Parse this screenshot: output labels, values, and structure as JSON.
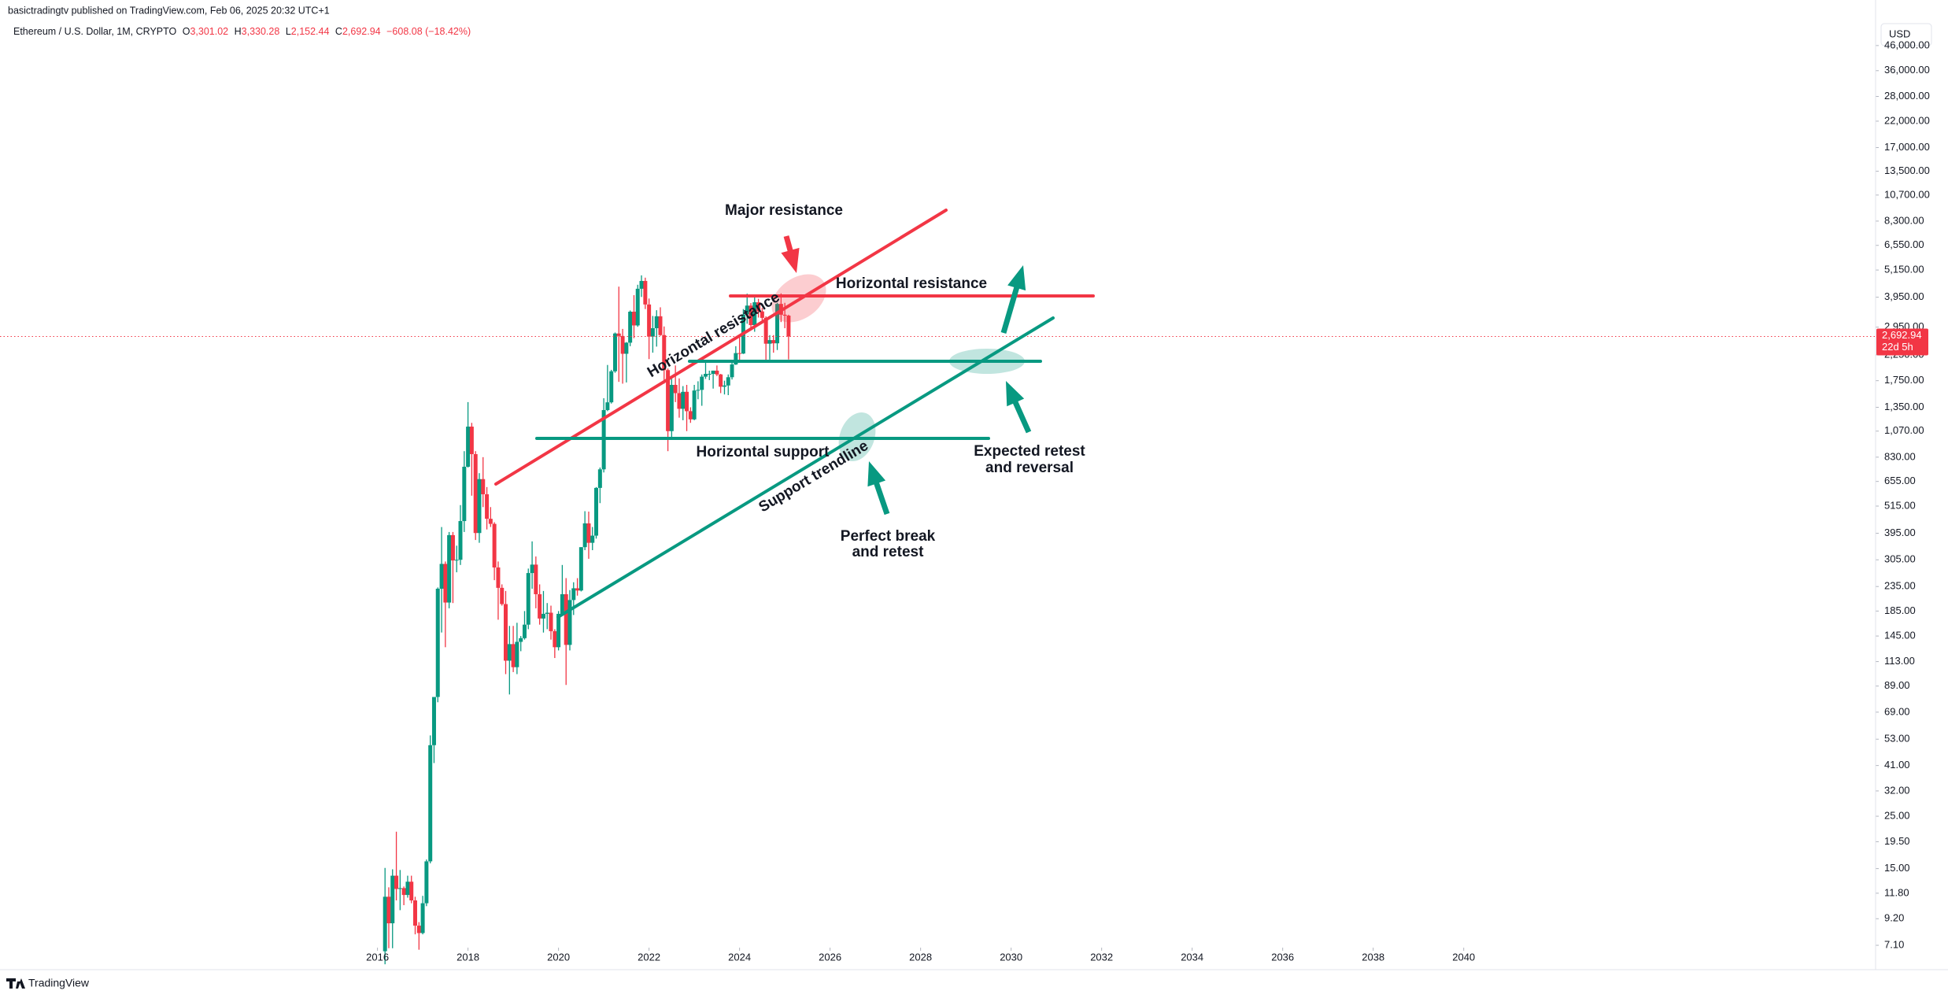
{
  "chart_data": {
    "type": "candlestick",
    "published": "basictradingtv published on TradingView.com, Feb 06, 2025 20:32 UTC+1",
    "title": "Ethereum / U.S. Dollar, 1M, CRYPTO",
    "ohlc_labels": [
      "O",
      "H",
      "L",
      "C"
    ],
    "ohlc_values": [
      "3,301.02",
      "3,330.28",
      "2,152.44",
      "2,692.94"
    ],
    "change": "−608.08 (−18.42%)",
    "currency": "USD",
    "price_label": "2,692.94",
    "countdown": "22d 5h",
    "brand": "TradingView",
    "annotations": [
      "Major resistance",
      "Horizontal resistance",
      "Horizontal resistance",
      "Horizontal support",
      "Support trendline",
      "Perfect break",
      "and retest",
      "Expected retest",
      "and reversal"
    ],
    "log_scale": true,
    "up_color": "#089981",
    "down_color": "#f23645",
    "xlim": [
      2007.66,
      2049.1
    ],
    "xticks": [
      2016,
      2018,
      2020,
      2022,
      2024,
      2026,
      2028,
      2030,
      2032,
      2034,
      2036,
      2038,
      2040
    ],
    "ylim": [
      6.94,
      59200
    ],
    "yticks": [
      {
        "value": 7.1,
        "label": "7.10"
      },
      {
        "value": 9.2,
        "label": "9.20"
      },
      {
        "value": 11.8,
        "label": "11.80"
      },
      {
        "value": 15,
        "label": "15.00"
      },
      {
        "value": 19.5,
        "label": "19.50"
      },
      {
        "value": 25,
        "label": "25.00"
      },
      {
        "value": 32,
        "label": "32.00"
      },
      {
        "value": 41,
        "label": "41.00"
      },
      {
        "value": 53,
        "label": "53.00"
      },
      {
        "value": 69,
        "label": "69.00"
      },
      {
        "value": 89,
        "label": "89.00"
      },
      {
        "value": 113,
        "label": "113.00"
      },
      {
        "value": 145,
        "label": "145.00"
      },
      {
        "value": 185,
        "label": "185.00"
      },
      {
        "value": 235,
        "label": "235.00"
      },
      {
        "value": 305,
        "label": "305.00"
      },
      {
        "value": 395,
        "label": "395.00"
      },
      {
        "value": 515,
        "label": "515.00"
      },
      {
        "value": 655,
        "label": "655.00"
      },
      {
        "value": 830,
        "label": "830.00"
      },
      {
        "value": 1070,
        "label": "1,070.00"
      },
      {
        "value": 1350,
        "label": "1,350.00"
      },
      {
        "value": 1750,
        "label": "1,750.00"
      },
      {
        "value": 2250,
        "label": "2,250.00"
      },
      {
        "value": 2950,
        "label": "2,950.00"
      },
      {
        "value": 3950,
        "label": "3,950.00"
      },
      {
        "value": 5150,
        "label": "5,150.00"
      },
      {
        "value": 6550,
        "label": "6,550.00"
      },
      {
        "value": 8300,
        "label": "8,300.00"
      },
      {
        "value": 10700,
        "label": "10,700.00"
      },
      {
        "value": 13500,
        "label": "13,500.00"
      },
      {
        "value": 17000,
        "label": "17,000.00"
      },
      {
        "value": 22000,
        "label": "22,000.00"
      },
      {
        "value": 28000,
        "label": "28,000.00"
      },
      {
        "value": 36000,
        "label": "36,000.00"
      },
      {
        "value": 46000,
        "label": "46,000.00"
      }
    ],
    "x": [
      2016.167,
      2016.25,
      2016.333,
      2016.417,
      2016.5,
      2016.583,
      2016.667,
      2016.75,
      2016.833,
      2016.917,
      2017.0,
      2017.083,
      2017.167,
      2017.25,
      2017.333,
      2017.417,
      2017.5,
      2017.583,
      2017.667,
      2017.75,
      2017.833,
      2017.917,
      2018.0,
      2018.083,
      2018.167,
      2018.25,
      2018.333,
      2018.417,
      2018.5,
      2018.583,
      2018.667,
      2018.75,
      2018.833,
      2018.917,
      2019.0,
      2019.083,
      2019.167,
      2019.25,
      2019.333,
      2019.417,
      2019.5,
      2019.583,
      2019.667,
      2019.75,
      2019.833,
      2019.917,
      2020.0,
      2020.083,
      2020.167,
      2020.25,
      2020.333,
      2020.417,
      2020.5,
      2020.583,
      2020.667,
      2020.75,
      2020.833,
      2020.917,
      2021.0,
      2021.083,
      2021.167,
      2021.25,
      2021.333,
      2021.417,
      2021.5,
      2021.583,
      2021.667,
      2021.75,
      2021.833,
      2021.917,
      2022.0,
      2022.083,
      2022.167,
      2022.25,
      2022.333,
      2022.417,
      2022.5,
      2022.583,
      2022.667,
      2022.75,
      2022.833,
      2022.917,
      2023.0,
      2023.083,
      2023.167,
      2023.25,
      2023.333,
      2023.417,
      2023.5,
      2023.583,
      2023.667,
      2023.75,
      2023.833,
      2023.917,
      2024.0,
      2024.083,
      2024.167,
      2024.25,
      2024.333,
      2024.417,
      2024.5,
      2024.583,
      2024.667,
      2024.75,
      2024.833,
      2024.917,
      2025.0,
      2025.083
    ],
    "open": [
      6.7,
      11.4,
      8.8,
      14.0,
      12.3,
      12.4,
      11.6,
      13.2,
      11.0,
      8.6,
      8.0,
      10.7,
      16.1,
      50,
      80,
      230,
      293,
      201,
      388,
      303,
      305,
      445,
      756,
      1118,
      855,
      396,
      670,
      578,
      455,
      433,
      283,
      232,
      198,
      114,
      134,
      107,
      137,
      142,
      162,
      268,
      291,
      218,
      172,
      180,
      182,
      152,
      130,
      180,
      218,
      133,
      206,
      231,
      226,
      345,
      435,
      360,
      386,
      615,
      737,
      1314,
      1417,
      1918,
      2773,
      2707,
      2275,
      2535,
      3430,
      3000,
      4290,
      4630,
      3680,
      2690,
      2920,
      3280,
      2730,
      1940,
      1070,
      1680,
      1550,
      1330,
      1570,
      1300,
      1200,
      1590,
      1600,
      1820,
      1870,
      1870,
      1930,
      1860,
      1650,
      1670,
      1810,
      2050,
      2290,
      2280,
      3340,
      3640,
      3010,
      3760,
      3440,
      3230,
      2510,
      2600,
      2520,
      3700,
      3330,
      3301.02
    ],
    "high": [
      15.1,
      12.5,
      14.9,
      21.5,
      14.8,
      12.6,
      14.0,
      14.0,
      11.4,
      8.9,
      11.5,
      16.4,
      55,
      80,
      233,
      420,
      300,
      400,
      400,
      350,
      520,
      880,
      1420,
      1160,
      880,
      710,
      830,
      620,
      510,
      440,
      300,
      240,
      225,
      160,
      160,
      165,
      145,
      185,
      280,
      365,
      315,
      240,
      225,
      200,
      195,
      155,
      185,
      290,
      255,
      227,
      245,
      255,
      345,
      490,
      488,
      420,
      620,
      750,
      1475,
      2040,
      1945,
      2800,
      4380,
      2900,
      2550,
      3470,
      4030,
      4460,
      4890,
      4780,
      3900,
      3290,
      3480,
      3580,
      2970,
      1970,
      1780,
      2030,
      1790,
      1660,
      1680,
      1350,
      1680,
      1740,
      1860,
      2140,
      1930,
      1930,
      2030,
      1870,
      1750,
      1860,
      2130,
      2450,
      2720,
      3520,
      4090,
      3730,
      3980,
      3890,
      3560,
      3280,
      2730,
      2730,
      3740,
      4100,
      3740,
      3330.28
    ],
    "low": [
      5.9,
      6.9,
      6.9,
      11.0,
      10.0,
      10.5,
      11.3,
      10.7,
      7.9,
      6.8,
      7.9,
      10.4,
      15.8,
      42,
      76,
      150,
      130,
      190,
      200,
      270,
      290,
      400,
      750,
      570,
      370,
      360,
      510,
      410,
      420,
      250,
      170,
      195,
      100,
      82,
      102,
      100,
      125,
      140,
      155,
      230,
      190,
      162,
      150,
      155,
      140,
      117,
      126,
      179,
      90,
      126,
      178,
      215,
      224,
      335,
      308,
      335,
      375,
      530,
      715,
      1300,
      1400,
      1890,
      1730,
      1700,
      1720,
      2450,
      2650,
      2960,
      3960,
      3520,
      2160,
      2300,
      2440,
      2710,
      1700,
      880,
      1000,
      1420,
      1220,
      1190,
      1070,
      1160,
      1190,
      1460,
      1370,
      1780,
      1760,
      1620,
      1830,
      1550,
      1530,
      1520,
      1770,
      2040,
      2100,
      2270,
      3050,
      2860,
      2820,
      3240,
      3090,
      2110,
      2150,
      2300,
      2360,
      3100,
      2920,
      2152.44
    ],
    "close": [
      11.4,
      8.8,
      14.0,
      12.3,
      12.4,
      11.6,
      13.2,
      11.0,
      8.6,
      8.0,
      10.7,
      16.1,
      50,
      80,
      230,
      293,
      201,
      388,
      303,
      305,
      445,
      756,
      1118,
      855,
      396,
      670,
      578,
      455,
      433,
      283,
      232,
      198,
      114,
      134,
      107,
      137,
      142,
      162,
      268,
      291,
      218,
      172,
      180,
      182,
      152,
      130,
      180,
      218,
      133,
      206,
      231,
      226,
      345,
      435,
      360,
      386,
      615,
      737,
      1314,
      1417,
      1918,
      2773,
      2707,
      2275,
      2535,
      3430,
      3000,
      4290,
      4630,
      3680,
      2690,
      2920,
      3280,
      2730,
      1940,
      1070,
      1680,
      1550,
      1330,
      1570,
      1300,
      1200,
      1590,
      1600,
      1820,
      1870,
      1870,
      1930,
      1860,
      1650,
      1670,
      1810,
      2050,
      2290,
      2280,
      3340,
      3640,
      3010,
      3760,
      3440,
      3230,
      2510,
      2600,
      2520,
      3700,
      3330,
      3301.02,
      2692.94
    ]
  }
}
